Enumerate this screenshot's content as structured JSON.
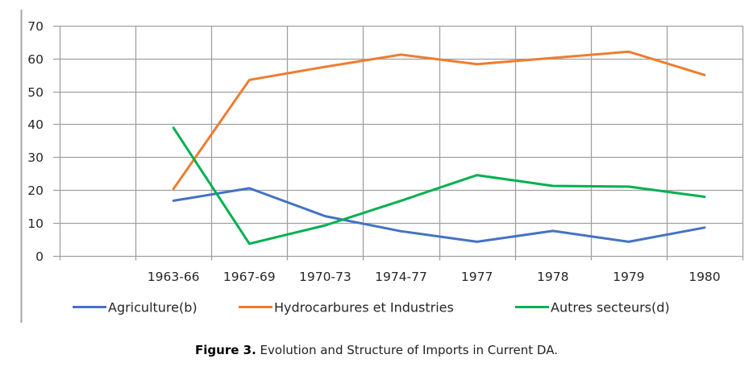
{
  "chart_data": {
    "type": "line",
    "title": "",
    "xlabel": "",
    "ylabel": "",
    "categories": [
      "",
      "1963-66",
      "1967-69",
      "1970-73",
      "1974-77",
      "1977",
      "1978",
      "1979",
      "1980"
    ],
    "ylim": [
      0,
      70
    ],
    "yticks": [
      0,
      10,
      20,
      30,
      40,
      50,
      60,
      70
    ],
    "grid": true,
    "legend_position": "bottom",
    "series": [
      {
        "name": "Agriculture(b)",
        "color": "#4472C4",
        "values": [
          null,
          16.7,
          20.5,
          12.0,
          7.4,
          4.2,
          7.5,
          4.2,
          8.5
        ]
      },
      {
        "name": "Hydrocarbures et Industries",
        "color": "#ED7D31",
        "values": [
          null,
          20.3,
          53.5,
          57.5,
          61.2,
          58.3,
          60.2,
          62.1,
          55.0
        ]
      },
      {
        "name": "Autres secteurs(d)",
        "color": "#00B050",
        "values": [
          null,
          38.9,
          3.6,
          9.2,
          16.7,
          24.5,
          21.2,
          21.0,
          17.9
        ]
      }
    ]
  },
  "caption": {
    "label": "Figure 3.",
    "text": " Evolution and Structure of Imports in Current DA."
  }
}
